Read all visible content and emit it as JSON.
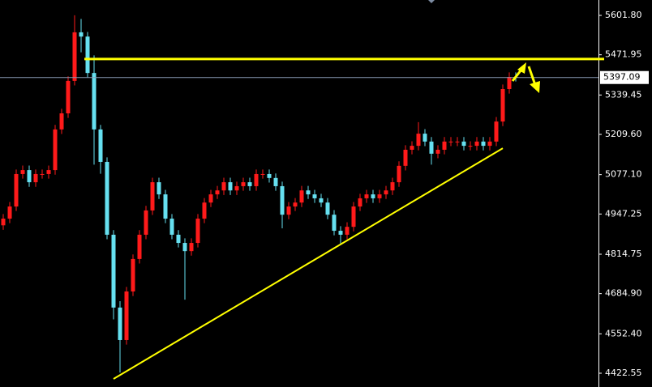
{
  "chart_data": {
    "type": "candlestick",
    "open": [
      4910,
      4932,
      4972,
      5079,
      5092,
      5052,
      5079,
      5079,
      5092,
      5226,
      5279,
      5386,
      5546,
      5532,
      5412,
      5226,
      5119,
      4879,
      4639,
      4532,
      4692,
      4799,
      4879,
      4959,
      5052,
      5012,
      4932,
      4879,
      4852,
      4825,
      4852,
      4932,
      4985,
      5012,
      5025,
      5052,
      5025,
      5039,
      5052,
      5039,
      5079,
      5079,
      5066,
      5039,
      4945,
      4972,
      4985,
      5025,
      5012,
      4999,
      4985,
      4945,
      4892,
      4879,
      4905,
      4972,
      4999,
      5012,
      4999,
      5012,
      5025,
      5052,
      5106,
      5159,
      5172,
      5212,
      5186,
      5146,
      5159,
      5186,
      5186,
      5186,
      5172,
      5172,
      5186,
      5172,
      5186,
      5252,
      5359,
      5399
    ],
    "high": [
      4947,
      4987,
      5094,
      5107,
      5107,
      5094,
      5094,
      5107,
      5241,
      5294,
      5401,
      5602,
      5590,
      5547,
      5470,
      5241,
      5134,
      4894,
      4660,
      4707,
      4814,
      4894,
      4974,
      5067,
      5067,
      5027,
      4947,
      4894,
      4867,
      4867,
      4947,
      5000,
      5027,
      5040,
      5067,
      5067,
      5054,
      5067,
      5067,
      5094,
      5094,
      5094,
      5081,
      5054,
      4987,
      5000,
      5040,
      5040,
      5027,
      5014,
      5000,
      4960,
      4907,
      4920,
      4987,
      5014,
      5027,
      5027,
      5027,
      5040,
      5067,
      5121,
      5174,
      5187,
      5250,
      5227,
      5201,
      5174,
      5201,
      5201,
      5201,
      5201,
      5187,
      5201,
      5201,
      5201,
      5267,
      5374,
      5414,
      5414
    ],
    "low": [
      4895,
      4917,
      4957,
      5064,
      5037,
      5037,
      5064,
      5064,
      5077,
      5211,
      5264,
      5371,
      5480,
      5397,
      5110,
      5080,
      4864,
      4600,
      4425,
      4517,
      4677,
      4784,
      4864,
      4944,
      4997,
      4917,
      4864,
      4837,
      4665,
      4810,
      4837,
      4917,
      4970,
      4997,
      5010,
      5010,
      5010,
      5024,
      5024,
      5024,
      5064,
      5051,
      5024,
      4900,
      4930,
      4957,
      4970,
      4997,
      4984,
      4970,
      4930,
      4877,
      4850,
      4864,
      4890,
      4957,
      4984,
      4984,
      4984,
      4997,
      5010,
      5037,
      5091,
      5144,
      5157,
      5171,
      5110,
      5131,
      5144,
      5171,
      5171,
      5157,
      5157,
      5157,
      5157,
      5157,
      5171,
      5237,
      5344,
      5384
    ],
    "close": [
      4932,
      4972,
      5079,
      5092,
      5052,
      5079,
      5079,
      5092,
      5226,
      5279,
      5386,
      5546,
      5532,
      5412,
      5226,
      5119,
      4879,
      4639,
      4532,
      4692,
      4799,
      4879,
      4959,
      5052,
      5012,
      4932,
      4879,
      4852,
      4825,
      4852,
      4932,
      4985,
      5012,
      5025,
      5052,
      5025,
      5039,
      5052,
      5039,
      5079,
      5079,
      5066,
      5039,
      4945,
      4972,
      4985,
      5025,
      5012,
      4999,
      4985,
      4945,
      4892,
      4879,
      4905,
      4972,
      4999,
      5012,
      4999,
      5012,
      5025,
      5052,
      5106,
      5159,
      5172,
      5212,
      5186,
      5146,
      5159,
      5186,
      5186,
      5186,
      5172,
      5172,
      5186,
      5172,
      5186,
      5252,
      5359,
      5399,
      5397.09
    ],
    "up_color": "#ff1a1a",
    "down_color": "#66e0f0",
    "ylim": [
      4377.2,
      5652.5
    ],
    "yticks": [
      {
        "value": 5601.8,
        "label": "5601.80"
      },
      5471.95,
      5339.45,
      {
        "value": 5209.6,
        "label": "5209.60"
      },
      {
        "value": 5077.1,
        "label": "5077.10"
      },
      4947.25,
      4814.75,
      {
        "value": 4684.9,
        "label": "4684.90"
      },
      {
        "value": 4552.4,
        "label": "4552.40"
      },
      4422.55
    ],
    "last_price": 5397.09,
    "resistance": 5458,
    "trendline": {
      "from": [
        17,
        4404
      ],
      "to": [
        77,
        5164
      ]
    }
  }
}
